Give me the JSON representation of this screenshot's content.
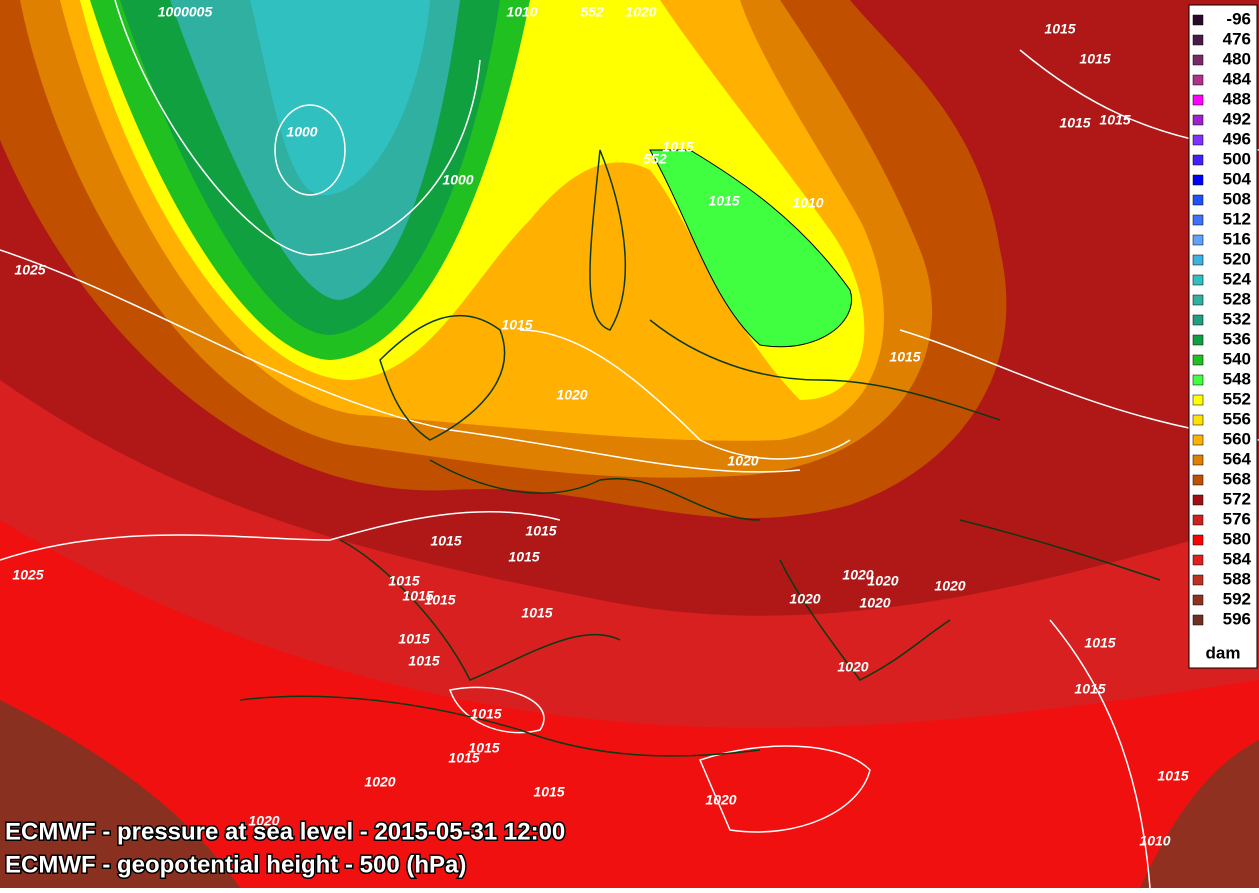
{
  "legend": {
    "unit": "dam",
    "items": [
      {
        "value": -96,
        "color": "#2a0a2a"
      },
      {
        "value": 476,
        "color": "#4a1a4a"
      },
      {
        "value": 480,
        "color": "#7a2a6a"
      },
      {
        "value": 484,
        "color": "#b03090"
      },
      {
        "value": 488,
        "color": "#ff00ff"
      },
      {
        "value": 492,
        "color": "#a020d0"
      },
      {
        "value": 496,
        "color": "#8030ff"
      },
      {
        "value": 500,
        "color": "#4020ff"
      },
      {
        "value": 504,
        "color": "#0000ff"
      },
      {
        "value": 508,
        "color": "#2050ff"
      },
      {
        "value": 512,
        "color": "#4070ff"
      },
      {
        "value": 516,
        "color": "#60a0ff"
      },
      {
        "value": 520,
        "color": "#40b0e0"
      },
      {
        "value": 524,
        "color": "#30c0c0"
      },
      {
        "value": 528,
        "color": "#30b0a0"
      },
      {
        "value": 532,
        "color": "#20a080"
      },
      {
        "value": 536,
        "color": "#10a040"
      },
      {
        "value": 540,
        "color": "#20c020"
      },
      {
        "value": 548,
        "color": "#40ff40"
      },
      {
        "value": 552,
        "color": "#ffff00"
      },
      {
        "value": 556,
        "color": "#ffe000"
      },
      {
        "value": 560,
        "color": "#ffb000"
      },
      {
        "value": 564,
        "color": "#e08000"
      },
      {
        "value": 568,
        "color": "#c05000"
      },
      {
        "value": 572,
        "color": "#a01010"
      },
      {
        "value": 576,
        "color": "#d02020"
      },
      {
        "value": 580,
        "color": "#ff0000"
      },
      {
        "value": 584,
        "color": "#e02020"
      },
      {
        "value": 588,
        "color": "#c03020"
      },
      {
        "value": 592,
        "color": "#903020"
      },
      {
        "value": 596,
        "color": "#703020"
      }
    ]
  },
  "isobar_labels": [
    1000005,
    1010,
    552,
    1020,
    1015,
    1015,
    1015,
    1015,
    1000,
    1000,
    552,
    1015,
    1015,
    1010,
    1025,
    1015,
    1015,
    1020,
    1020,
    1015,
    1015,
    1015,
    1025,
    1015,
    1015,
    1015,
    1020,
    1020,
    1020,
    1020,
    1020,
    1015,
    1015,
    1015,
    1015,
    1015,
    1020,
    1015,
    1015,
    1015,
    1020,
    1015,
    1020,
    1015,
    1020,
    1010
  ],
  "captions": [
    "ECMWF - pressure at sea level - 2015-05-31 12:00",
    "ECMWF - geopotential height - 500 (hPa)"
  ]
}
